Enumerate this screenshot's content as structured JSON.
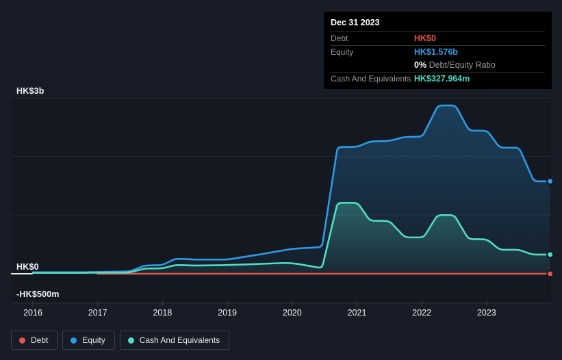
{
  "tooltip": {
    "date": "Dec 31 2023",
    "debt_label": "Debt",
    "debt_value": "HK$0",
    "equity_label": "Equity",
    "equity_value": "HK$1.576b",
    "ratio_value": "0%",
    "ratio_label": "Debt/Equity Ratio",
    "cash_label": "Cash And Equivalents",
    "cash_value": "HK$327.964m"
  },
  "legend": {
    "items": [
      {
        "label": "Debt",
        "color": "#e4564c"
      },
      {
        "label": "Equity",
        "color": "#2d9be5"
      },
      {
        "label": "Cash And Equivalents",
        "color": "#53dcc1"
      }
    ]
  },
  "chart_data": {
    "type": "area",
    "unit": "HK$m",
    "x_range": [
      2016,
      2024
    ],
    "x_ticks": [
      2016,
      2017,
      2018,
      2019,
      2020,
      2021,
      2022,
      2023
    ],
    "y_ticks": [
      {
        "label": "HK$3b",
        "value": 3000
      },
      {
        "label": "HK$0",
        "value": 0
      },
      {
        "label": "-HK$500m",
        "value": -500
      }
    ],
    "gridline_values": [
      3000,
      2000,
      1000
    ],
    "ylim": [
      -500,
      3000
    ],
    "legend_position": "bottom-left",
    "series": [
      {
        "name": "Debt",
        "color": "#e4564c",
        "fill": false,
        "points": [
          [
            2017.0,
            0
          ],
          [
            2023.98,
            0
          ]
        ]
      },
      {
        "name": "Equity",
        "color": "#2d9be5",
        "fill": true,
        "points": [
          [
            2016.0,
            25
          ],
          [
            2016.7,
            25
          ],
          [
            2017.0,
            30
          ],
          [
            2017.5,
            40
          ],
          [
            2017.72,
            140
          ],
          [
            2018.0,
            148
          ],
          [
            2018.2,
            258
          ],
          [
            2018.5,
            242
          ],
          [
            2019.0,
            242
          ],
          [
            2019.5,
            330
          ],
          [
            2020.0,
            425
          ],
          [
            2020.46,
            455
          ],
          [
            2020.7,
            2160
          ],
          [
            2021.01,
            2165
          ],
          [
            2021.2,
            2255
          ],
          [
            2021.5,
            2265
          ],
          [
            2021.72,
            2330
          ],
          [
            2022.01,
            2340
          ],
          [
            2022.25,
            2870
          ],
          [
            2022.52,
            2870
          ],
          [
            2022.73,
            2440
          ],
          [
            2023.01,
            2440
          ],
          [
            2023.2,
            2150
          ],
          [
            2023.5,
            2150
          ],
          [
            2023.73,
            1576
          ],
          [
            2023.98,
            1576
          ]
        ]
      },
      {
        "name": "Cash And Equivalents",
        "color": "#53dcc1",
        "fill": true,
        "points": [
          [
            2016.0,
            15
          ],
          [
            2016.7,
            15
          ],
          [
            2017.0,
            18
          ],
          [
            2017.5,
            22
          ],
          [
            2017.72,
            90
          ],
          [
            2018.0,
            92
          ],
          [
            2018.2,
            150
          ],
          [
            2018.5,
            140
          ],
          [
            2019.0,
            148
          ],
          [
            2019.5,
            168
          ],
          [
            2019.9,
            185
          ],
          [
            2020.05,
            175
          ],
          [
            2020.46,
            95
          ],
          [
            2020.7,
            1210
          ],
          [
            2021.01,
            1210
          ],
          [
            2021.2,
            905
          ],
          [
            2021.5,
            900
          ],
          [
            2021.74,
            620
          ],
          [
            2022.03,
            620
          ],
          [
            2022.24,
            1000
          ],
          [
            2022.5,
            1000
          ],
          [
            2022.72,
            592
          ],
          [
            2023.01,
            585
          ],
          [
            2023.2,
            410
          ],
          [
            2023.5,
            410
          ],
          [
            2023.7,
            328
          ],
          [
            2023.98,
            328
          ]
        ]
      }
    ]
  }
}
